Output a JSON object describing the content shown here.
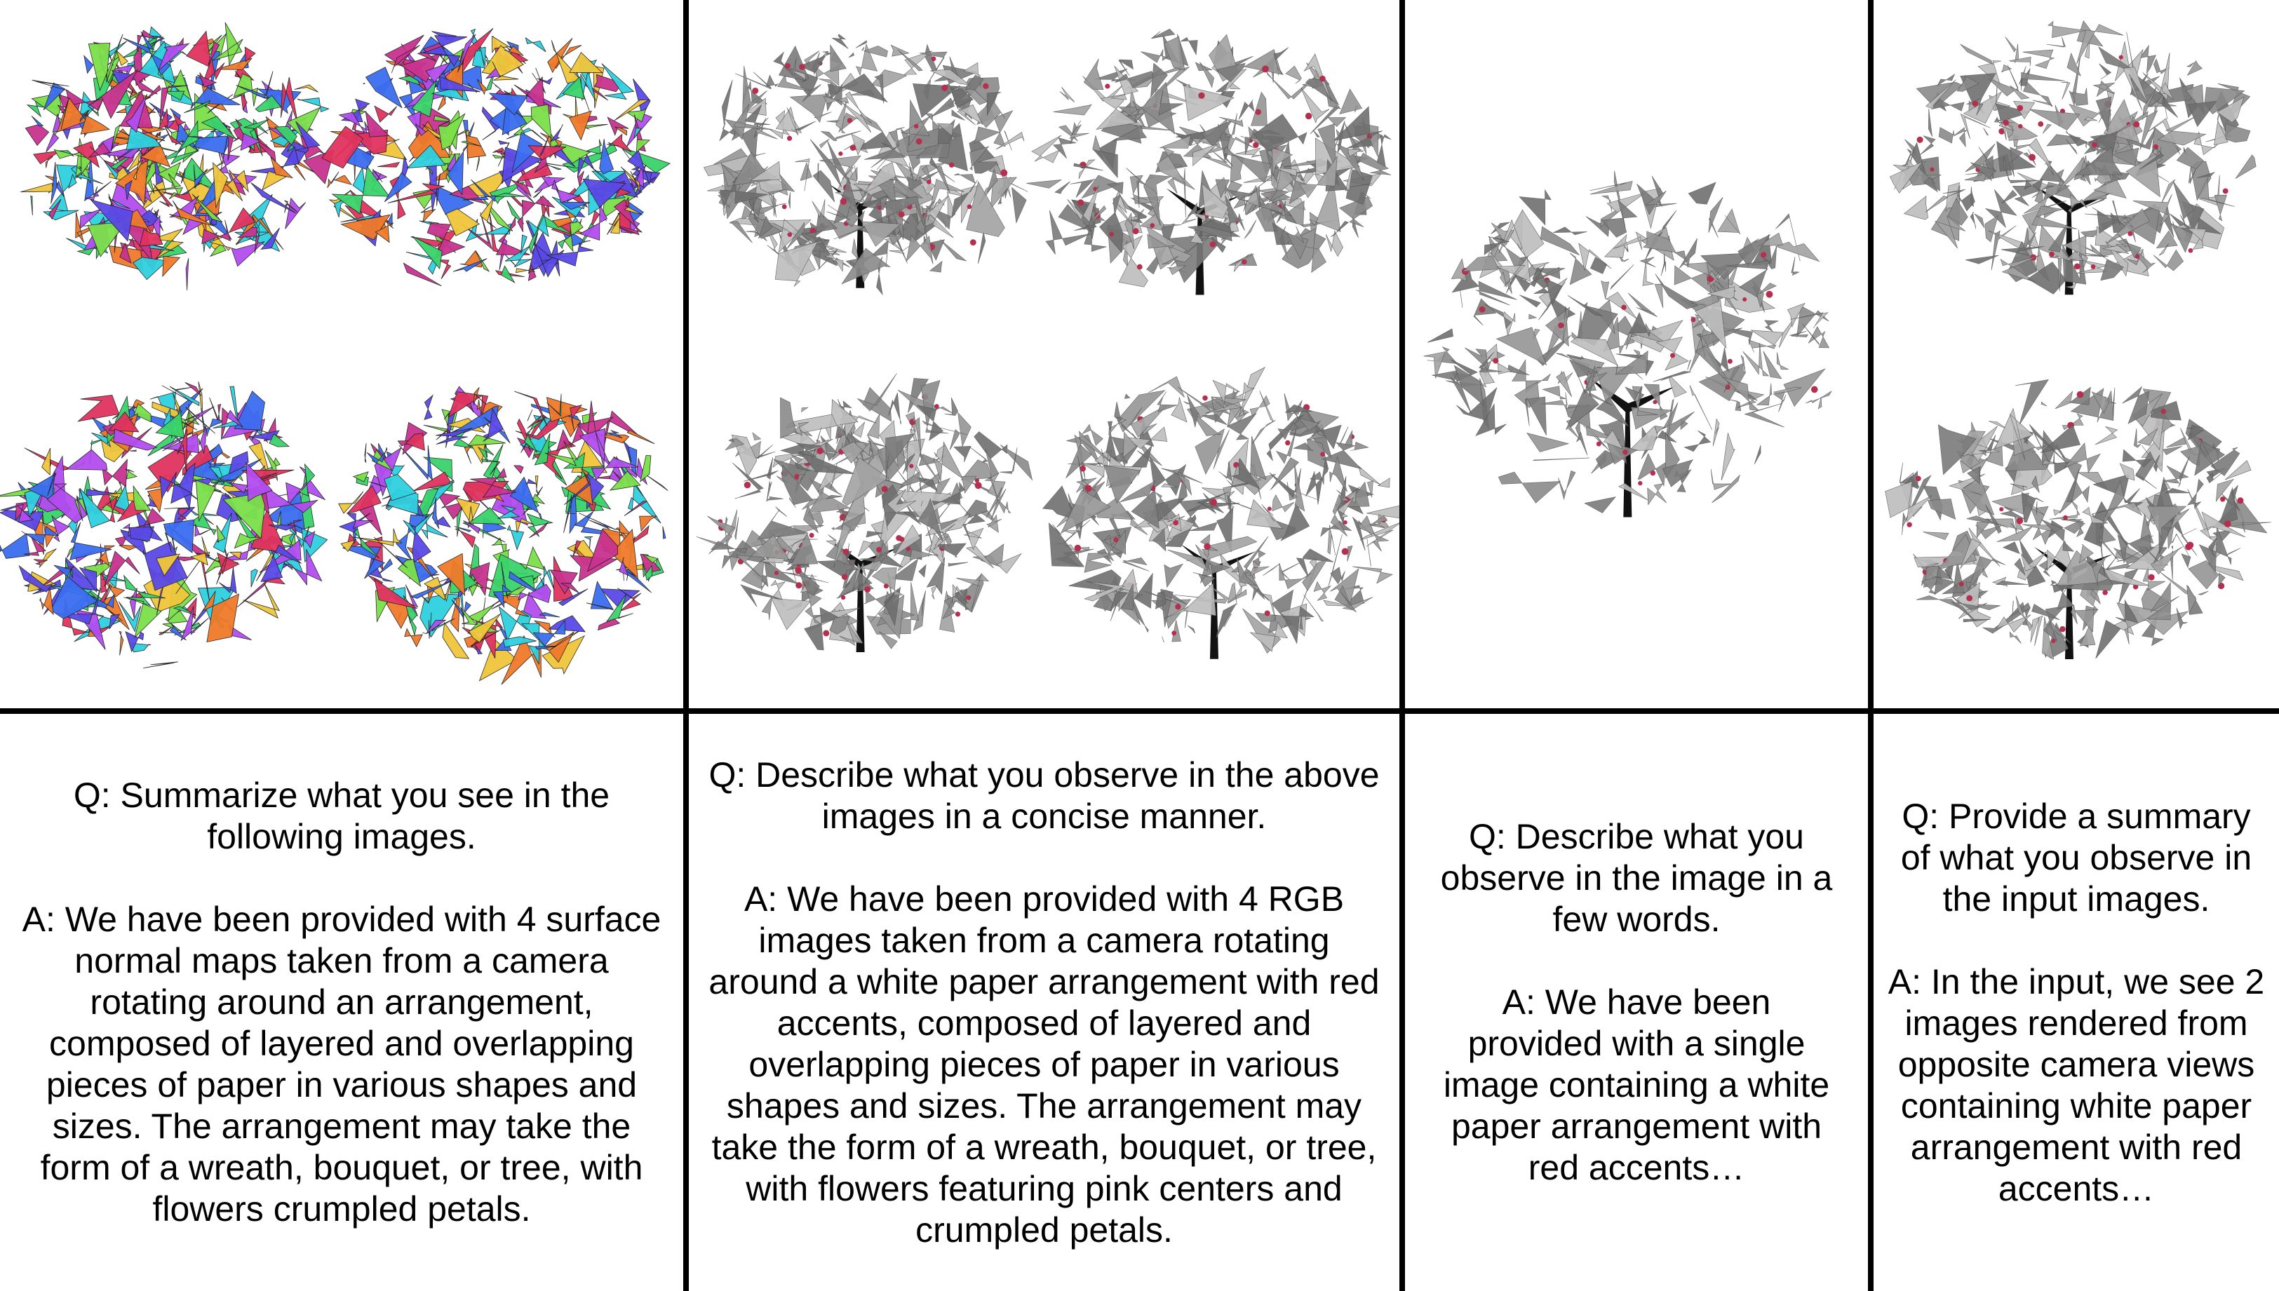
{
  "columns": [
    {
      "image_kind": "surface-normal-maps",
      "image_count": 4,
      "question": "Q: Summarize what you see in the following images.",
      "answer": "A: We have been provided with 4 surface normal maps taken from a camera rotating around an arrangement, composed of layered and overlapping pieces of paper in various shapes and sizes. The arrangement may take the form of a wreath, bouquet, or tree, with flowers crumpled petals."
    },
    {
      "image_kind": "rgb-renders",
      "image_count": 4,
      "question": "Q: Describe what you observe in the above images in a concise manner.",
      "answer": "A: We have been provided with 4 RGB images taken from a camera rotating around a white paper arrangement with red accents, composed of layered and overlapping pieces of paper in various shapes and sizes. The arrangement may take the form of a wreath, bouquet, or tree, with flowers featuring pink centers and crumpled petals."
    },
    {
      "image_kind": "single-rgb-render",
      "image_count": 1,
      "question": "Q: Describe what you observe in the image in a few words.",
      "answer": "A: We have been provided with a single image containing a white paper arrangement with red accents…"
    },
    {
      "image_kind": "opposite-view-renders",
      "image_count": 2,
      "question": "Q: Provide a summary of what you observe in the input images.",
      "answer": "A: In the input, we see 2 images rendered from opposite camera views containing white paper arrangement with red accents…"
    }
  ],
  "colors": {
    "normal_palette": [
      "#e0335f",
      "#3b6df0",
      "#39d36a",
      "#f0c63a",
      "#b34cf0",
      "#ef7a2a",
      "#2fd0e0",
      "#7be04a",
      "#c9338f",
      "#5a49e6"
    ],
    "paper_palette": [
      "#8a8a8a",
      "#a3a3a3",
      "#6f6f6f",
      "#bdbdbd",
      "#959595",
      "#7b7b7b"
    ],
    "accent_red": "#b5304f",
    "trunk": "#111111"
  }
}
